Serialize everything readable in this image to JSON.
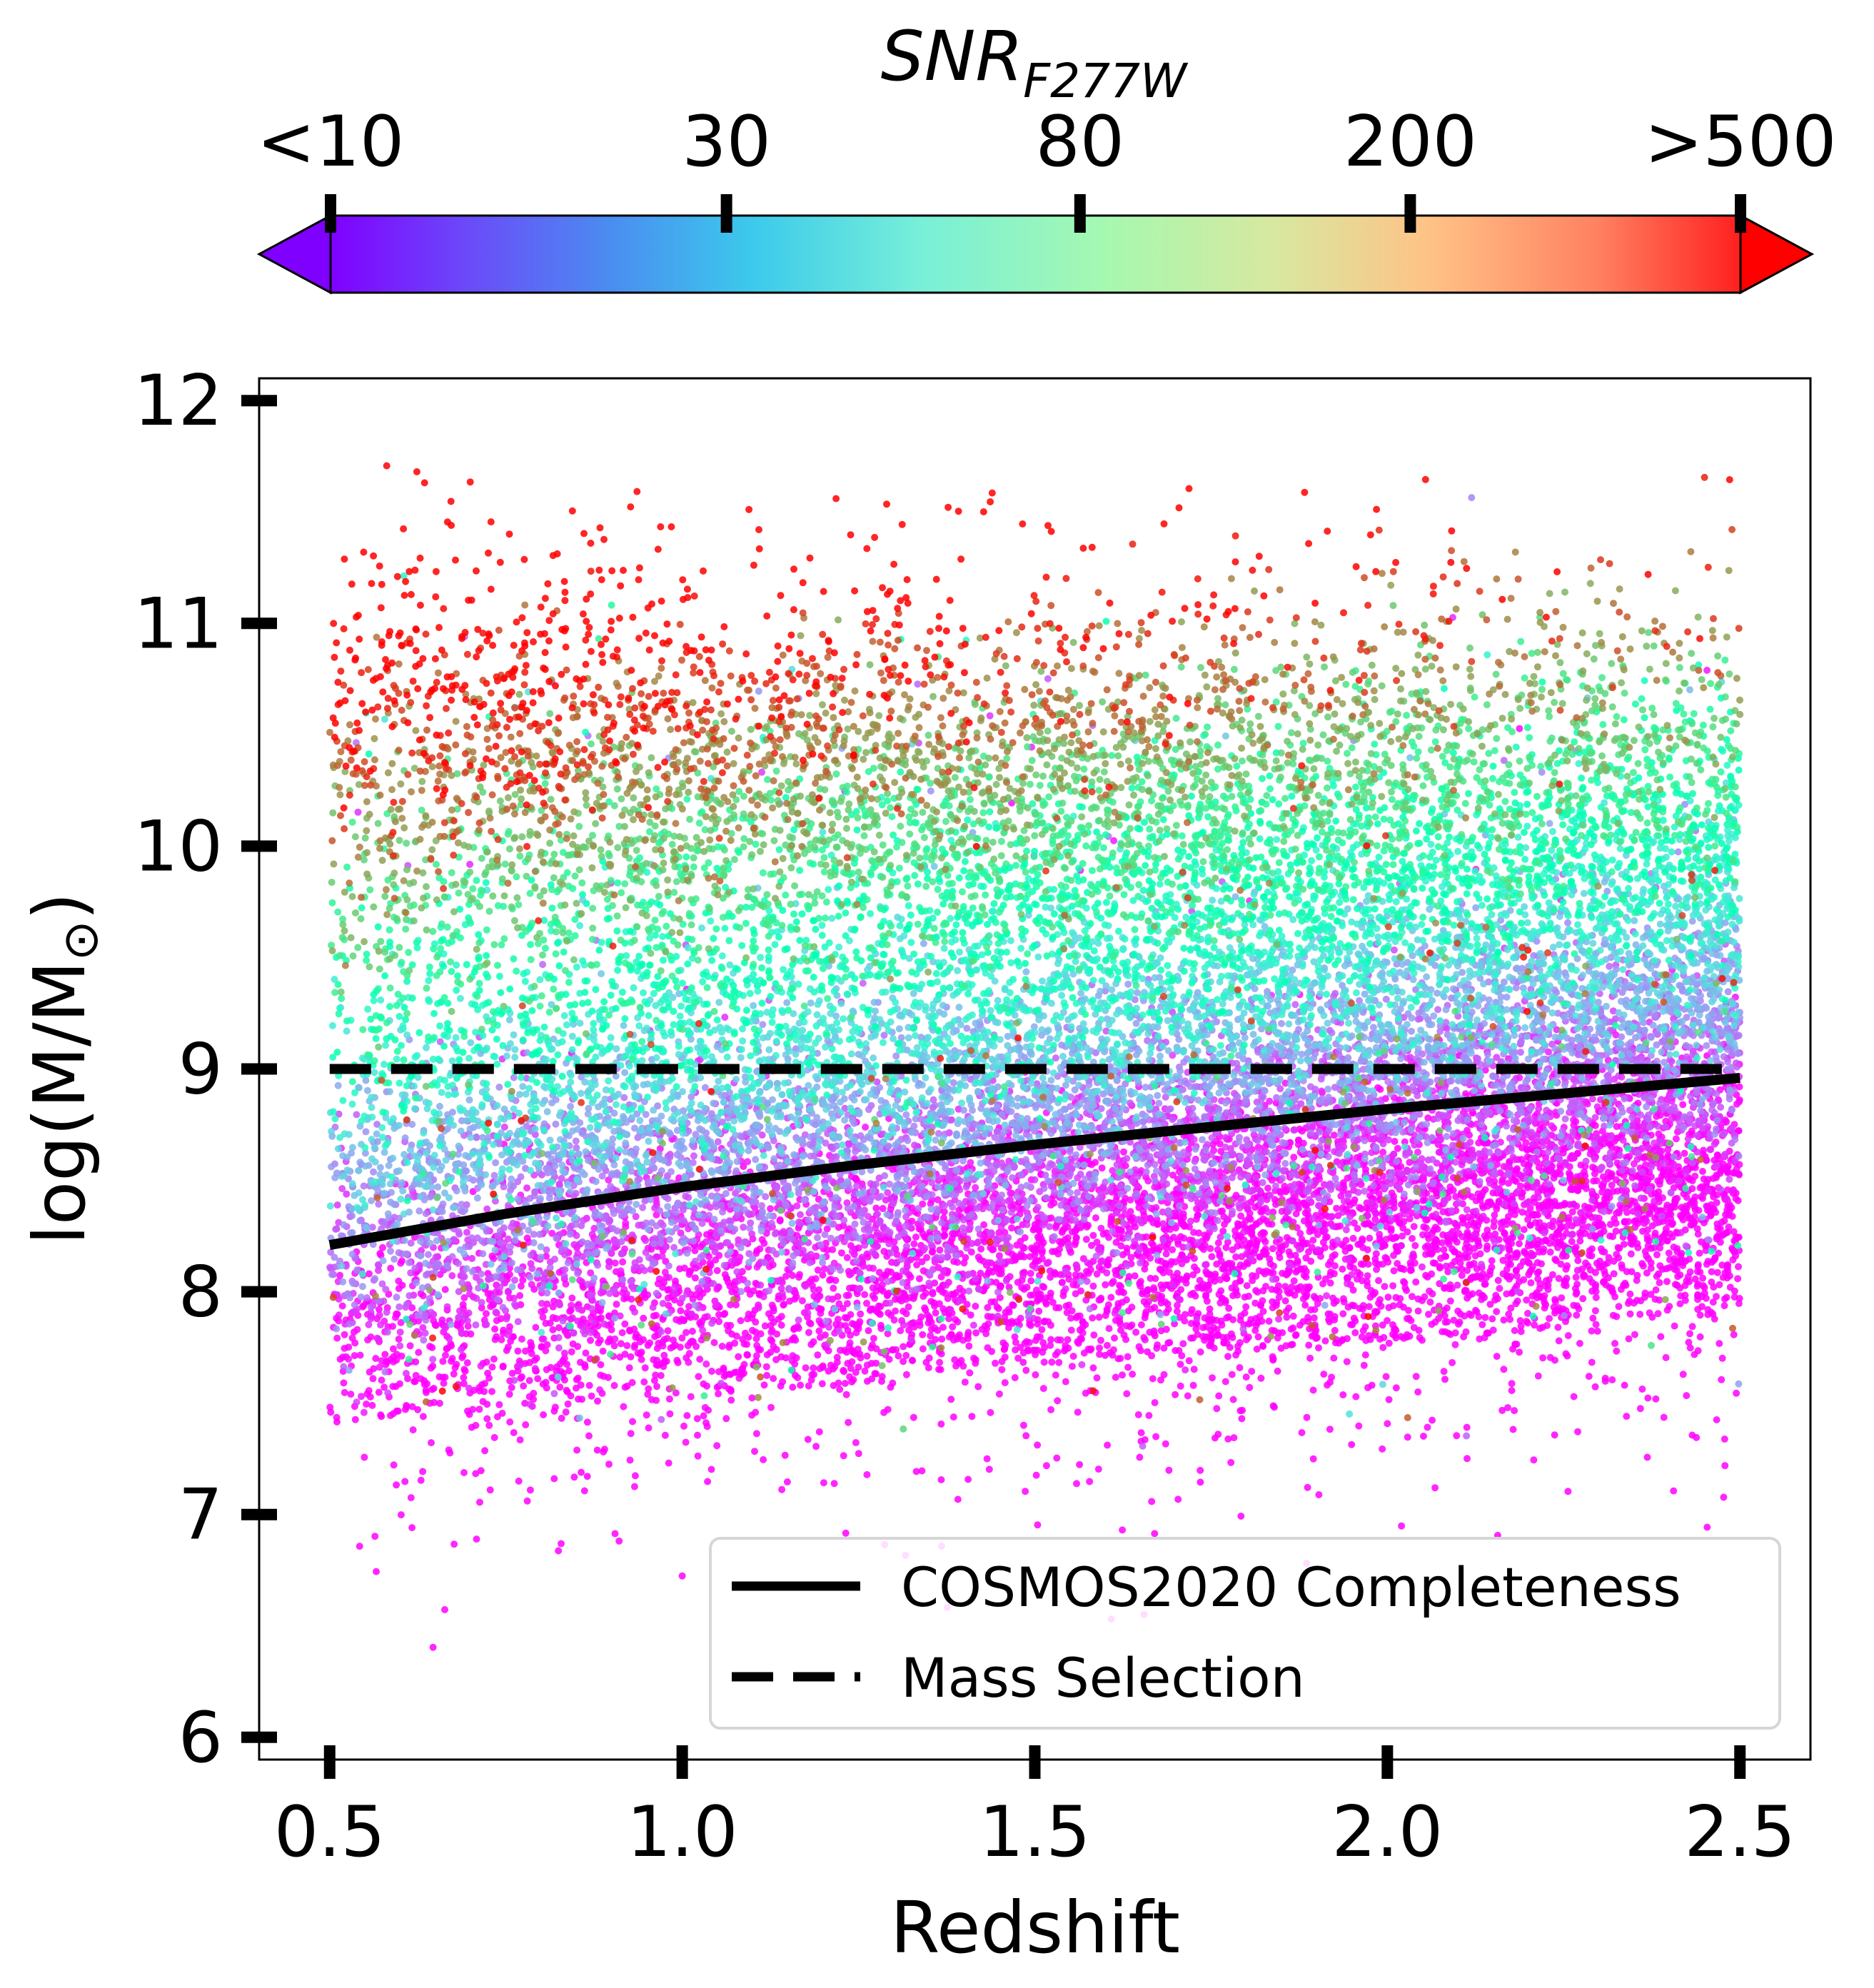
{
  "chart_data": {
    "type": "scatter",
    "title": "",
    "xlabel": "Redshift",
    "ylabel": "log(M/M",
    "ylabel_symbol": "⊙",
    "ylabel_close": ")",
    "xlim": [
      0.4,
      2.6
    ],
    "ylim": [
      5.9,
      12.1
    ],
    "x_ticks": [
      0.5,
      1.0,
      1.5,
      2.0,
      2.5
    ],
    "x_tick_labels": [
      "0.5",
      "1.0",
      "1.5",
      "2.0",
      "2.5"
    ],
    "y_ticks": [
      6,
      7,
      8,
      9,
      10,
      11,
      12
    ],
    "y_tick_labels": [
      "6",
      "7",
      "8",
      "9",
      "10",
      "11",
      "12"
    ],
    "grid": false,
    "colorbar": {
      "label_main": "SNR",
      "label_sub": "F277W",
      "scale": "log",
      "ticks": [
        10,
        30,
        80,
        200,
        500
      ],
      "tick_labels": [
        "<10",
        "30",
        "80",
        "200",
        ">500"
      ],
      "extend": "both",
      "colormap": "rainbow"
    },
    "scatter_summary": {
      "approx_points": 60000,
      "x_range": [
        0.5,
        2.5
      ],
      "description_mass_range": [
        6.1,
        11.8
      ],
      "snr_range": [
        10,
        500
      ]
    },
    "series": [
      {
        "name": "COSMOS2020 Completeness",
        "style": "solid",
        "x": [
          0.5,
          0.75,
          1.0,
          1.25,
          1.5,
          1.75,
          2.0,
          2.25,
          2.5
        ],
        "y": [
          8.21,
          8.35,
          8.47,
          8.57,
          8.66,
          8.74,
          8.82,
          8.89,
          8.96
        ]
      },
      {
        "name": "Mass Selection",
        "style": "dashed",
        "x": [
          0.5,
          2.5
        ],
        "y": [
          9.0,
          9.0
        ]
      }
    ],
    "legend": {
      "position": "lower-right",
      "entries": [
        "COSMOS2020 Completeness",
        "Mass Selection"
      ]
    },
    "colors": {
      "line": "#000000",
      "axis": "#000000",
      "background": "#ffffff"
    }
  }
}
